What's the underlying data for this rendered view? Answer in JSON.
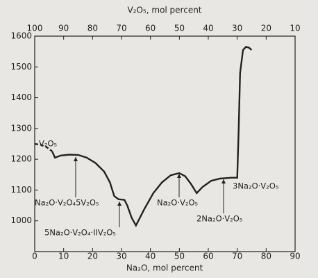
{
  "chart_data": {
    "type": "line",
    "x_label": "Na₂O, mol percent",
    "x2_label": "V₂O₅, mol percent",
    "xlim": [
      0,
      90
    ],
    "xticks": [
      0,
      10,
      20,
      30,
      40,
      50,
      60,
      70,
      80,
      90
    ],
    "x2lim": [
      100,
      10
    ],
    "x2ticks": [
      100,
      90,
      80,
      70,
      60,
      50,
      40,
      30,
      20,
      10
    ],
    "ylim": [
      900,
      1600
    ],
    "yticks": [
      1000,
      1100,
      1200,
      1300,
      1400,
      1500,
      1600
    ],
    "series": [
      {
        "color": "#222222",
        "style": "dashed",
        "x": [
          0,
          2,
          4,
          6
        ],
        "values": [
          1250,
          1247,
          1240,
          1226
        ]
      },
      {
        "color": "#222222",
        "style": "solid",
        "x": [
          6,
          7,
          9,
          12,
          15,
          18,
          21,
          24,
          26,
          27.5,
          29,
          31,
          32,
          33.5,
          35,
          38,
          41,
          44,
          47,
          50,
          52,
          54,
          56,
          58,
          61,
          64,
          68,
          70,
          70.5,
          71,
          72,
          73,
          74,
          75
        ],
        "values": [
          1226,
          1205,
          1212,
          1215,
          1214,
          1205,
          1188,
          1160,
          1125,
          1080,
          1070,
          1068,
          1050,
          1010,
          985,
          1040,
          1090,
          1125,
          1148,
          1155,
          1145,
          1120,
          1090,
          1110,
          1130,
          1137,
          1140,
          1140,
          1300,
          1480,
          1555,
          1565,
          1563,
          1555
        ]
      }
    ],
    "annotations": [
      "V₂O₅",
      "Na₂O·V₂O₄5V₂O₅",
      "5Na₂O·V₂O₄·IIV₂O₅",
      "Na₂O·V₂O₅",
      "2Na₂O·V₂O₅",
      "3Na₂O·V₂O₅"
    ]
  }
}
